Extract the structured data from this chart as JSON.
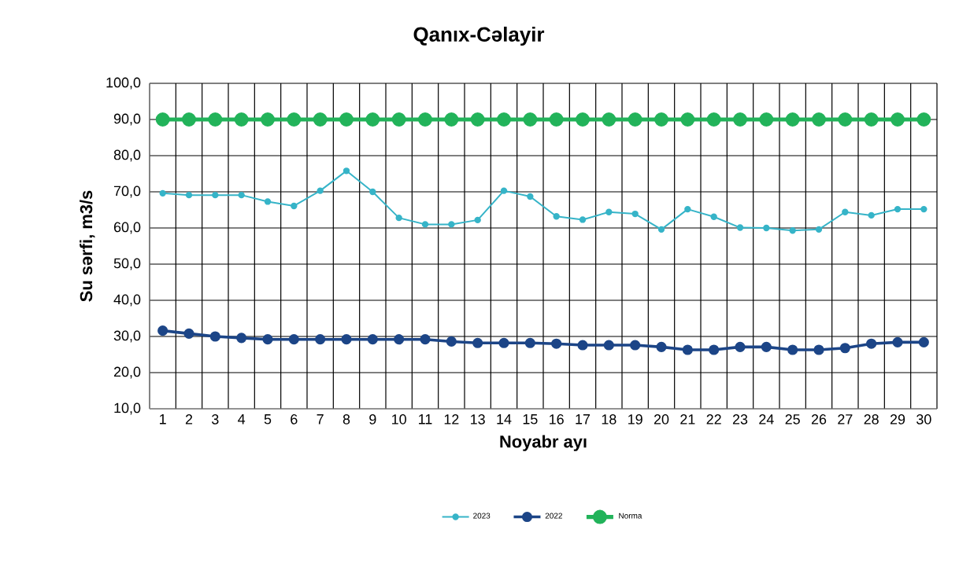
{
  "chart_data": {
    "type": "line",
    "title": "Qanıx-Cəlayir",
    "xlabel": "Noyabr ayı",
    "ylabel": "Su sərfi, m3/s",
    "categories": [
      "1",
      "2",
      "3",
      "4",
      "5",
      "6",
      "7",
      "8",
      "9",
      "10",
      "11",
      "12",
      "13",
      "14",
      "15",
      "16",
      "17",
      "18",
      "19",
      "20",
      "21",
      "22",
      "23",
      "24",
      "25",
      "26",
      "27",
      "28",
      "29",
      "30"
    ],
    "series": [
      {
        "name": "2023",
        "color": "#36b4c8",
        "values": [
          69.6,
          69.1,
          69.1,
          69.1,
          67.3,
          66.1,
          70.3,
          75.8,
          70.0,
          62.8,
          61.0,
          61.0,
          62.2,
          70.3,
          68.7,
          63.2,
          62.3,
          64.4,
          63.9,
          59.6,
          65.2,
          63.1,
          60.1,
          60.0,
          59.3,
          59.6,
          64.4,
          63.5,
          65.2,
          65.2
        ]
      },
      {
        "name": "2022",
        "color": "#1c4587",
        "values": [
          31.6,
          30.8,
          30.0,
          29.6,
          29.2,
          29.2,
          29.2,
          29.2,
          29.2,
          29.2,
          29.2,
          28.6,
          28.2,
          28.2,
          28.2,
          28.0,
          27.6,
          27.6,
          27.6,
          27.1,
          26.3,
          26.3,
          27.1,
          27.1,
          26.3,
          26.3,
          26.8,
          28.0,
          28.4,
          28.4
        ]
      },
      {
        "name": "Norma",
        "color": "#22b35a",
        "values": [
          90,
          90,
          90,
          90,
          90,
          90,
          90,
          90,
          90,
          90,
          90,
          90,
          90,
          90,
          90,
          90,
          90,
          90,
          90,
          90,
          90,
          90,
          90,
          90,
          90,
          90,
          90,
          90,
          90,
          90
        ]
      }
    ],
    "ylim": [
      10,
      100
    ],
    "yticks": [
      {
        "value": 10,
        "label": "10,0"
      },
      {
        "value": 20,
        "label": "20,0"
      },
      {
        "value": 30,
        "label": "30,0"
      },
      {
        "value": 40,
        "label": "40,0"
      },
      {
        "value": 50,
        "label": "50,0"
      },
      {
        "value": 60,
        "label": "60,0"
      },
      {
        "value": 70,
        "label": "70,0"
      },
      {
        "value": 80,
        "label": "80,0"
      },
      {
        "value": 90,
        "label": "90,0"
      },
      {
        "value": 100,
        "label": "100,0"
      }
    ],
    "grid": true,
    "legend": "bottom",
    "marker": "circle",
    "line_style": "solid"
  }
}
